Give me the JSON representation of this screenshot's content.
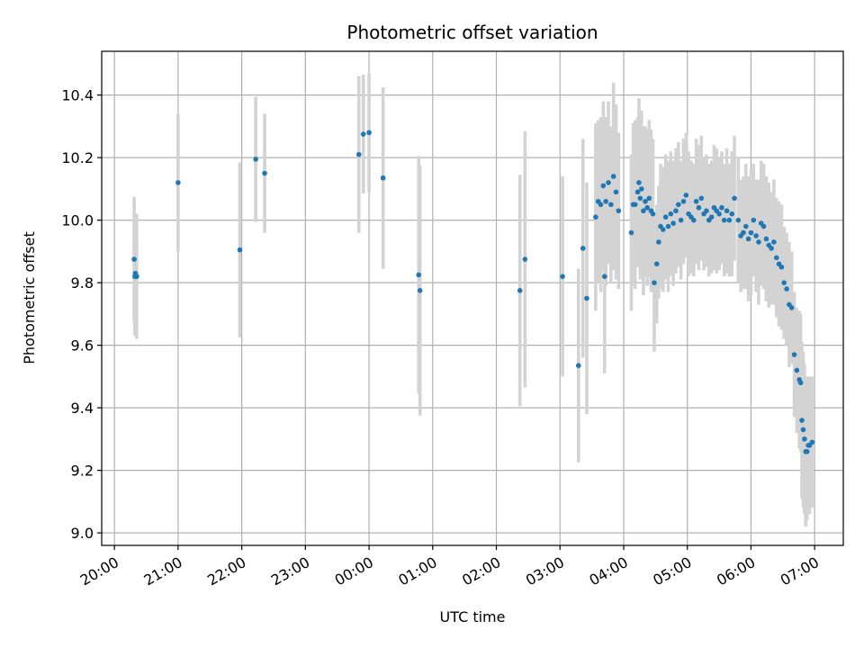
{
  "chart_data": {
    "type": "scatter",
    "title": "Photometric offset variation",
    "xlabel": "UTC time",
    "ylabel": "Photometric offset",
    "xlim": [
      -0.2,
      11.45
    ],
    "ylim": [
      8.96,
      10.54
    ],
    "grid": true,
    "x_ticks": [
      {
        "value": 0,
        "label": "20:00"
      },
      {
        "value": 1,
        "label": "21:00"
      },
      {
        "value": 2,
        "label": "22:00"
      },
      {
        "value": 3,
        "label": "23:00"
      },
      {
        "value": 4,
        "label": "00:00"
      },
      {
        "value": 5,
        "label": "01:00"
      },
      {
        "value": 6,
        "label": "02:00"
      },
      {
        "value": 7,
        "label": "03:00"
      },
      {
        "value": 8,
        "label": "04:00"
      },
      {
        "value": 9,
        "label": "05:00"
      },
      {
        "value": 10,
        "label": "06:00"
      },
      {
        "value": 11,
        "label": "07:00"
      }
    ],
    "y_ticks": [
      {
        "value": 9.0,
        "label": "9.0"
      },
      {
        "value": 9.2,
        "label": "9.2"
      },
      {
        "value": 9.4,
        "label": "9.4"
      },
      {
        "value": 9.6,
        "label": "9.6"
      },
      {
        "value": 9.8,
        "label": "9.8"
      },
      {
        "value": 10.0,
        "label": "10.0"
      },
      {
        "value": 10.2,
        "label": "10.2"
      },
      {
        "value": 10.4,
        "label": "10.4"
      }
    ],
    "marker_color": "#1f77b4",
    "errorbar_color": "#d3d3d3",
    "series": [
      {
        "x": [
          0.31,
          0.32,
          0.33,
          0.35,
          1.0,
          1.97,
          2.22,
          2.36,
          3.84,
          3.91,
          4.0,
          4.22,
          4.78,
          4.8,
          6.37,
          6.45,
          7.04,
          7.29,
          7.36,
          7.42,
          7.56,
          7.6,
          7.64,
          7.68,
          7.7,
          7.72,
          7.76,
          7.8,
          7.84,
          7.88,
          7.92,
          8.12,
          8.15,
          8.18,
          8.22,
          8.24,
          8.26,
          8.28,
          8.31,
          8.34,
          8.37,
          8.4,
          8.43,
          8.46,
          8.48,
          8.52,
          8.55,
          8.58,
          8.62,
          8.66,
          8.7,
          8.74,
          8.78,
          8.82,
          8.86,
          8.9,
          8.94,
          8.98,
          9.02,
          9.06,
          9.1,
          9.14,
          9.18,
          9.22,
          9.26,
          9.3,
          9.34,
          9.38,
          9.42,
          9.46,
          9.5,
          9.54,
          9.58,
          9.62,
          9.66,
          9.7,
          9.74,
          9.8,
          9.84,
          9.88,
          9.92,
          9.96,
          10.0,
          10.04,
          10.08,
          10.12,
          10.16,
          10.2,
          10.24,
          10.28,
          10.32,
          10.36,
          10.4,
          10.44,
          10.48,
          10.52,
          10.56,
          10.6,
          10.64,
          10.68,
          10.72,
          10.76,
          10.78,
          10.8,
          10.82,
          10.84,
          10.86,
          10.88,
          10.9,
          10.92,
          10.96
        ],
        "y": [
          9.875,
          9.82,
          9.83,
          9.82,
          10.12,
          9.905,
          10.195,
          10.15,
          10.21,
          10.275,
          10.28,
          10.135,
          9.825,
          9.775,
          9.775,
          9.875,
          9.82,
          9.535,
          9.91,
          9.75,
          10.01,
          10.06,
          10.05,
          10.11,
          9.82,
          10.06,
          10.12,
          10.05,
          10.14,
          10.09,
          10.03,
          9.96,
          10.05,
          10.05,
          10.09,
          10.12,
          10.07,
          10.1,
          10.03,
          10.06,
          10.04,
          10.07,
          10.03,
          10.02,
          9.8,
          9.86,
          9.93,
          9.98,
          9.97,
          10.01,
          9.98,
          10.02,
          9.99,
          10.03,
          10.05,
          10.0,
          10.06,
          10.08,
          10.02,
          10.01,
          10.0,
          10.06,
          10.04,
          10.07,
          10.02,
          10.03,
          10.0,
          10.01,
          10.04,
          10.03,
          10.02,
          10.04,
          10.0,
          10.03,
          10.0,
          10.02,
          10.07,
          10.0,
          9.95,
          9.96,
          9.98,
          9.94,
          9.96,
          10.0,
          9.95,
          9.93,
          9.99,
          9.98,
          9.94,
          9.92,
          9.91,
          9.93,
          9.88,
          9.86,
          9.85,
          9.8,
          9.78,
          9.73,
          9.72,
          9.57,
          9.52,
          9.49,
          9.48,
          9.36,
          9.33,
          9.3,
          9.26,
          9.26,
          9.28,
          9.28,
          9.29
        ],
        "yerr": [
          0.2,
          0.19,
          0.19,
          0.2,
          0.22,
          0.28,
          0.2,
          0.19,
          0.25,
          0.19,
          0.19,
          0.29,
          0.38,
          0.4,
          0.37,
          0.41,
          0.32,
          0.31,
          0.35,
          0.37,
          0.3,
          0.26,
          0.28,
          0.27,
          0.31,
          0.27,
          0.26,
          0.25,
          0.3,
          0.28,
          0.25,
          0.25,
          0.26,
          0.27,
          0.24,
          0.27,
          0.26,
          0.25,
          0.27,
          0.24,
          0.25,
          0.25,
          0.26,
          0.24,
          0.22,
          0.19,
          0.18,
          0.2,
          0.2,
          0.2,
          0.21,
          0.2,
          0.2,
          0.2,
          0.2,
          0.19,
          0.2,
          0.2,
          0.2,
          0.18,
          0.18,
          0.2,
          0.2,
          0.2,
          0.18,
          0.18,
          0.18,
          0.18,
          0.2,
          0.2,
          0.18,
          0.18,
          0.18,
          0.2,
          0.18,
          0.2,
          0.2,
          0.2,
          0.18,
          0.18,
          0.2,
          0.2,
          0.2,
          0.18,
          0.18,
          0.2,
          0.2,
          0.2,
          0.2,
          0.2,
          0.18,
          0.2,
          0.19,
          0.2,
          0.2,
          0.18,
          0.18,
          0.2,
          0.18,
          0.2,
          0.2,
          0.22,
          0.22,
          0.25,
          0.25,
          0.24,
          0.24,
          0.22,
          0.22,
          0.22,
          0.21
        ]
      }
    ]
  }
}
